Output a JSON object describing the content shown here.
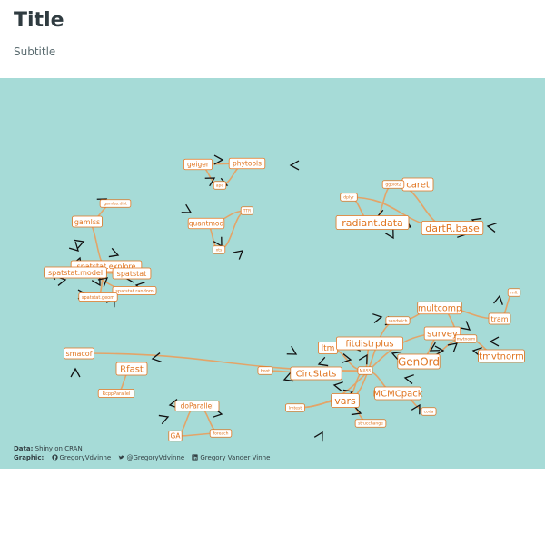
{
  "header": {
    "title": "Title",
    "subtitle": "Subtitle"
  },
  "caption": {
    "data_label": "Data:",
    "data_text": "Shiny on CRAN",
    "graphic_label": "Graphic:",
    "github": "GregoryVdvinne",
    "twitter": "@GregoryVdvinne",
    "linkedin": "Gregory Vander Vinne"
  },
  "colors": {
    "background": "#a6dbd7",
    "node_text": "#e0741f",
    "edge": "#e3a468",
    "arrow": "#111111"
  },
  "chart_data": {
    "type": "network",
    "nodes": [
      {
        "id": "geiger"
      },
      {
        "id": "phytools"
      },
      {
        "id": "ape"
      },
      {
        "id": "quantmod"
      },
      {
        "id": "TTR"
      },
      {
        "id": "xts"
      },
      {
        "id": "caret"
      },
      {
        "id": "radiant.data"
      },
      {
        "id": "dartR.base"
      },
      {
        "id": "dplyr"
      },
      {
        "id": "ggplot2"
      },
      {
        "id": "gamlss"
      },
      {
        "id": "gamlss.dist"
      },
      {
        "id": "spatstat.explore"
      },
      {
        "id": "spatstat.model"
      },
      {
        "id": "spatstat"
      },
      {
        "id": "spatstat.random"
      },
      {
        "id": "spatstat.geom"
      },
      {
        "id": "smacof"
      },
      {
        "id": "Rfast"
      },
      {
        "id": "RcppParallel"
      },
      {
        "id": "doParallel"
      },
      {
        "id": "GA"
      },
      {
        "id": "foreach"
      },
      {
        "id": "multcomp"
      },
      {
        "id": "tram"
      },
      {
        "id": "survey"
      },
      {
        "id": "ltm"
      },
      {
        "id": "fitdistrplus"
      },
      {
        "id": "GenOrd"
      },
      {
        "id": "tmvtnorm"
      },
      {
        "id": "CircStats"
      },
      {
        "id": "vars"
      },
      {
        "id": "MCMCpack"
      },
      {
        "id": "MASS"
      },
      {
        "id": "mvtnorm"
      },
      {
        "id": "coda"
      },
      {
        "id": "sandwich"
      },
      {
        "id": "boot"
      },
      {
        "id": "lmtest"
      },
      {
        "id": "strucchange"
      },
      {
        "id": "mlt"
      }
    ],
    "edges": [
      [
        "phytools",
        "geiger"
      ],
      [
        "ape",
        "geiger"
      ],
      [
        "ape",
        "phytools"
      ],
      [
        "TTR",
        "quantmod"
      ],
      [
        "xts",
        "quantmod"
      ],
      [
        "xts",
        "TTR"
      ],
      [
        "ggplot2",
        "caret"
      ],
      [
        "dplyr",
        "radiant.data"
      ],
      [
        "ggplot2",
        "radiant.data"
      ],
      [
        "dplyr",
        "dartR.base"
      ],
      [
        "ggplot2",
        "dartR.base"
      ],
      [
        "gamlss.dist",
        "gamlss"
      ],
      [
        "spatstat.explore",
        "gamlss"
      ],
      [
        "spatstat.geom",
        "spatstat.explore"
      ],
      [
        "spatstat.random",
        "spatstat.model"
      ],
      [
        "spatstat.explore",
        "spatstat.model"
      ],
      [
        "spatstat.model",
        "spatstat"
      ],
      [
        "spatstat.geom",
        "spatstat.random"
      ],
      [
        "MASS",
        "smacof"
      ],
      [
        "RcppParallel",
        "Rfast"
      ],
      [
        "foreach",
        "doParallel"
      ],
      [
        "doParallel",
        "GA"
      ],
      [
        "foreach",
        "GA"
      ],
      [
        "mvtnorm",
        "multcomp"
      ],
      [
        "sandwich",
        "multcomp"
      ],
      [
        "mlt",
        "tram"
      ],
      [
        "multcomp",
        "tram"
      ],
      [
        "MASS",
        "ltm"
      ],
      [
        "MASS",
        "fitdistrplus"
      ],
      [
        "survey",
        "GenOrd"
      ],
      [
        "mvtnorm",
        "GenOrd"
      ],
      [
        "mvtnorm",
        "tmvtnorm"
      ],
      [
        "boot",
        "CircStats"
      ],
      [
        "MASS",
        "CircStats"
      ],
      [
        "MASS",
        "vars"
      ],
      [
        "lmtest",
        "vars"
      ],
      [
        "strucchange",
        "vars"
      ],
      [
        "sandwich",
        "vars"
      ],
      [
        "MASS",
        "MCMCpack"
      ],
      [
        "coda",
        "MCMCpack"
      ],
      [
        "lmtest",
        "survey"
      ]
    ]
  }
}
